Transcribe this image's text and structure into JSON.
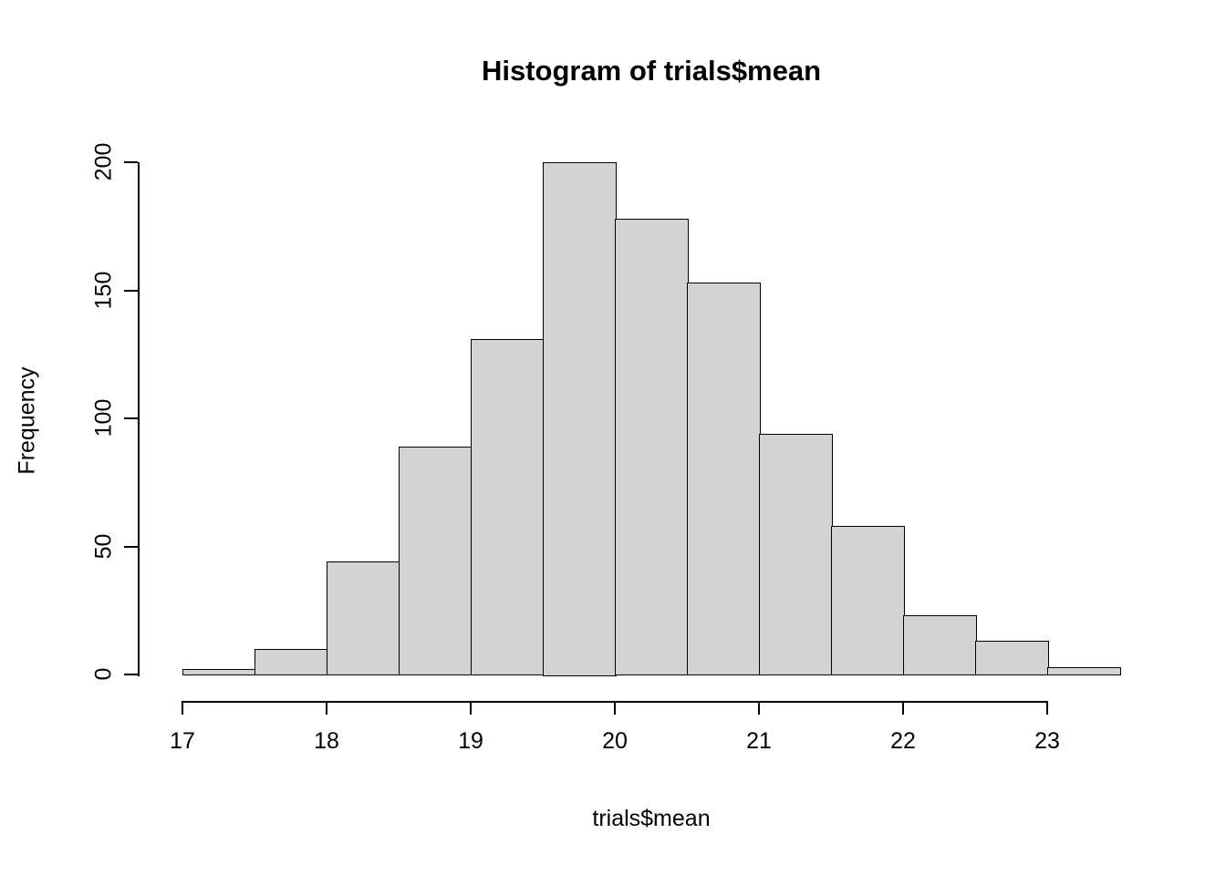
{
  "chart_data": {
    "type": "bar",
    "subtype": "histogram",
    "title": "Histogram of trials$mean",
    "xlabel": "trials$mean",
    "ylabel": "Frequency",
    "bin_start": 17,
    "bin_width": 0.5,
    "bins": [
      {
        "from": 17.0,
        "to": 17.5,
        "count": 2
      },
      {
        "from": 17.5,
        "to": 18.0,
        "count": 10
      },
      {
        "from": 18.0,
        "to": 18.5,
        "count": 44
      },
      {
        "from": 18.5,
        "to": 19.0,
        "count": 89
      },
      {
        "from": 19.0,
        "to": 19.5,
        "count": 131
      },
      {
        "from": 19.5,
        "to": 20.0,
        "count": 200
      },
      {
        "from": 20.0,
        "to": 20.5,
        "count": 178
      },
      {
        "from": 20.5,
        "to": 21.0,
        "count": 153
      },
      {
        "from": 21.0,
        "to": 21.5,
        "count": 94
      },
      {
        "from": 21.5,
        "to": 22.0,
        "count": 58
      },
      {
        "from": 22.0,
        "to": 22.5,
        "count": 23
      },
      {
        "from": 22.5,
        "to": 23.0,
        "count": 13
      },
      {
        "from": 23.0,
        "to": 23.5,
        "count": 3
      }
    ],
    "x_ticks": [
      17,
      18,
      19,
      20,
      21,
      22,
      23
    ],
    "y_ticks": [
      0,
      50,
      100,
      150,
      200
    ],
    "xlim": [
      17,
      23.5
    ],
    "ylim": [
      0,
      200
    ],
    "bar_fill": "#d3d3d3",
    "bar_border": "#000000",
    "grid": false,
    "legend": false
  }
}
